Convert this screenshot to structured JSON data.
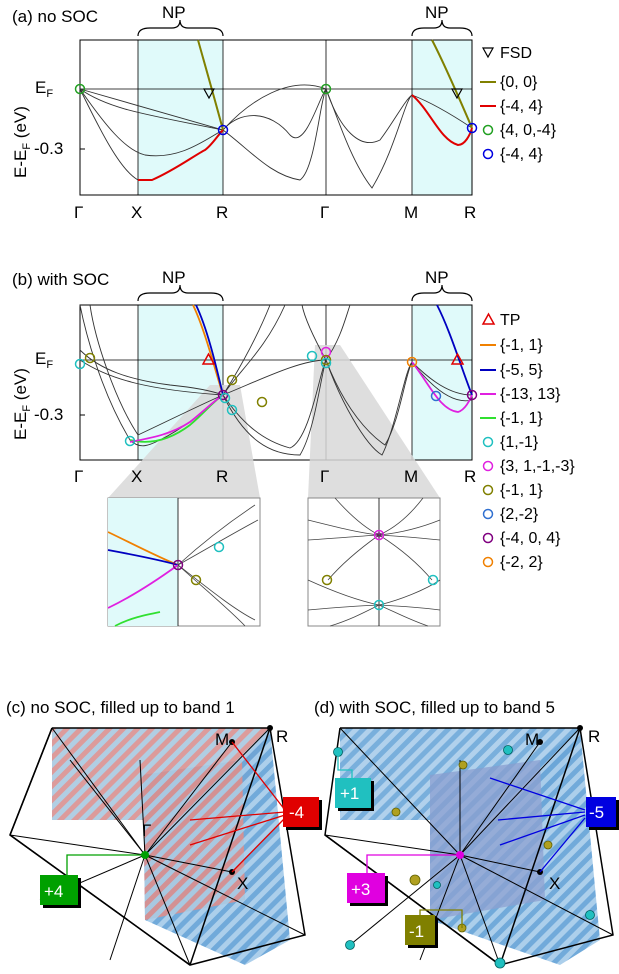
{
  "panels": {
    "a": {
      "label": "(a) no SOC"
    },
    "b": {
      "label": "(b) with SOC"
    },
    "c": {
      "label": "(c) no SOC, filled up to band 1"
    },
    "d": {
      "label": "(d) with SOC, filled up to band 5"
    }
  },
  "common": {
    "ylabel": "E-E",
    "ylabel_sub": "F",
    "ylabel_unit": " (eV)",
    "ef": "E",
    "ef_sub": "F",
    "tick": "-0.3",
    "np": "NP",
    "kpoints": [
      "Γ",
      "X",
      "R",
      "Γ",
      "M",
      "R"
    ]
  },
  "legend_a": {
    "title": "FSD",
    "items": [
      {
        "label": "{0, 0}",
        "kind": "line",
        "color": "#808000"
      },
      {
        "label": "{-4, 4}",
        "kind": "line",
        "color": "#e00000"
      },
      {
        "label": "{4, 0,-4}",
        "kind": "circle",
        "color": "#22a022"
      },
      {
        "label": "{-4, 4}",
        "kind": "circle",
        "color": "#0000e0"
      }
    ]
  },
  "legend_b": {
    "title": "TP",
    "items": [
      {
        "label": "{-1, 1}",
        "kind": "line",
        "color": "#f08000"
      },
      {
        "label": "{-5, 5}",
        "kind": "line",
        "color": "#0000c0"
      },
      {
        "label": "{-13, 13}",
        "kind": "line",
        "color": "#e020e0"
      },
      {
        "label": "{-1, 1}",
        "kind": "line",
        "color": "#30e030"
      },
      {
        "label": "{1,-1}",
        "kind": "circle",
        "color": "#20c0c0"
      },
      {
        "label": "{3, 1,-1,-3}",
        "kind": "circle",
        "color": "#e020e0"
      },
      {
        "label": "{-1, 1}",
        "kind": "circle",
        "color": "#808000"
      },
      {
        "label": "{2,-2}",
        "kind": "circle",
        "color": "#3070d0"
      },
      {
        "label": "{-4, 0, 4}",
        "kind": "circle",
        "color": "#800080"
      },
      {
        "label": "{-2, 2}",
        "kind": "circle",
        "color": "#f08000"
      }
    ]
  },
  "bz_c": {
    "points": {
      "M": "M",
      "R": "R",
      "G": "Γ",
      "X": "X"
    },
    "charges": [
      {
        "label": "+4",
        "color": "#00a000"
      },
      {
        "label": "-4",
        "color": "#e00000"
      }
    ]
  },
  "bz_d": {
    "points": {
      "M": "M",
      "R": "R",
      "X": "X"
    },
    "charges": [
      {
        "label": "+1",
        "color": "#20c0c0"
      },
      {
        "label": "+3",
        "color": "#e000e0"
      },
      {
        "label": "-1",
        "color": "#808000"
      },
      {
        "label": "-5",
        "color": "#0000e0"
      }
    ]
  },
  "colors": {
    "np_shade": "#e0fafa",
    "zoom_shade": "#d8d8d8"
  }
}
